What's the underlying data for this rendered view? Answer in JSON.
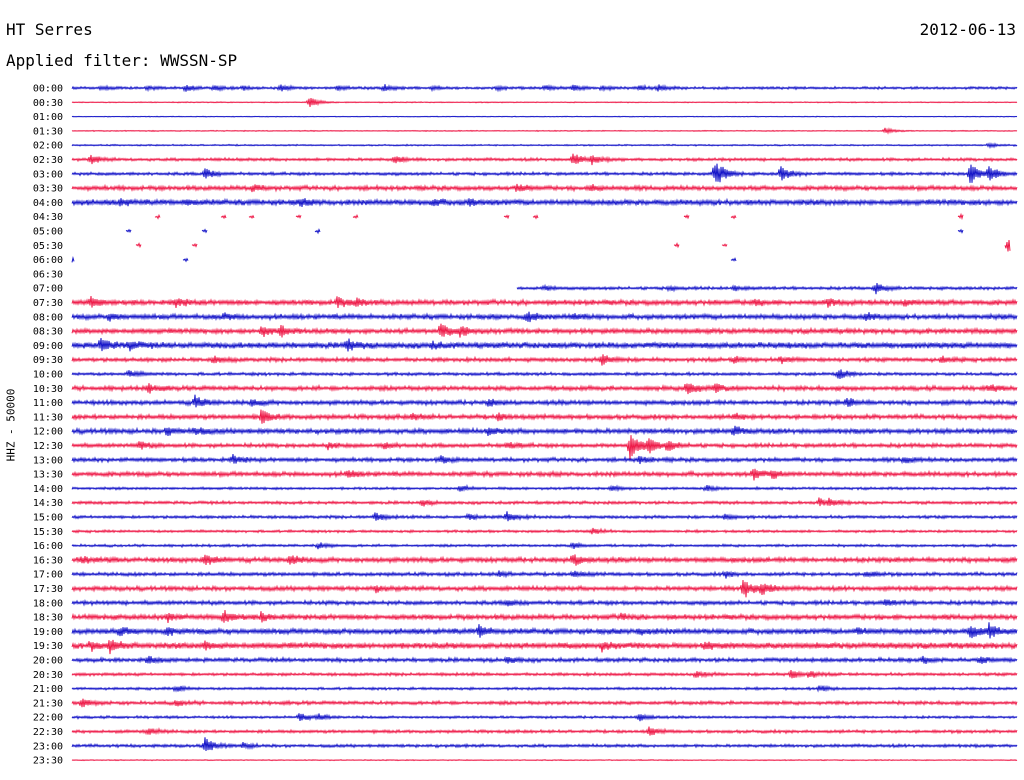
{
  "header": {
    "station": "HT Serres",
    "filter": "Applied filter: WWSSN-SP",
    "date": "2012-06-13"
  },
  "y_axis_label": "HHZ - 50000",
  "colors": {
    "trace_a": "#1414c8",
    "trace_b": "#ee1a48"
  },
  "chart_data": {
    "type": "line",
    "title": "HT Serres",
    "subtitle": "Applied filter: WWSSN-SP",
    "ylabel": "HHZ - 50000",
    "row_labels": [
      "00:00",
      "00:30",
      "01:00",
      "01:30",
      "02:00",
      "02:30",
      "03:00",
      "03:30",
      "04:00",
      "04:30",
      "05:00",
      "05:30",
      "06:00",
      "06:30",
      "07:00",
      "07:30",
      "08:00",
      "08:30",
      "09:00",
      "09:30",
      "10:00",
      "10:30",
      "11:00",
      "11:30",
      "12:00",
      "12:30",
      "13:00",
      "13:30",
      "14:00",
      "14:30",
      "15:00",
      "15:30",
      "16:00",
      "16:30",
      "17:00",
      "17:30",
      "18:00",
      "18:30",
      "19:00",
      "19:30",
      "20:00",
      "20:30",
      "21:00",
      "21:30",
      "22:00",
      "22:30",
      "23:00",
      "23:30"
    ],
    "row_minutes": 30,
    "rows": [
      {
        "noise": 1.0,
        "events": [
          [
            0.03,
            2
          ],
          [
            0.08,
            2
          ],
          [
            0.12,
            3
          ],
          [
            0.15,
            2.5
          ],
          [
            0.18,
            2
          ],
          [
            0.22,
            3
          ],
          [
            0.28,
            2
          ],
          [
            0.33,
            3
          ],
          [
            0.38,
            2
          ],
          [
            0.45,
            2
          ],
          [
            0.5,
            2.5
          ],
          [
            0.53,
            3
          ],
          [
            0.56,
            2
          ],
          [
            0.6,
            2.5
          ],
          [
            0.62,
            3
          ]
        ]
      },
      {
        "noise": 0.4,
        "events": [
          [
            0.25,
            6
          ]
        ]
      },
      {
        "noise": 0.3,
        "events": []
      },
      {
        "noise": 0.4,
        "events": [
          [
            0.86,
            3
          ]
        ]
      },
      {
        "noise": 0.6,
        "events": [
          [
            0.97,
            2
          ]
        ]
      },
      {
        "noise": 1.2,
        "events": [
          [
            0.02,
            4
          ],
          [
            0.34,
            4
          ],
          [
            0.53,
            6
          ],
          [
            0.55,
            4
          ]
        ]
      },
      {
        "noise": 1.2,
        "events": [
          [
            0.14,
            6
          ],
          [
            0.68,
            16
          ],
          [
            0.75,
            8
          ],
          [
            0.95,
            12
          ],
          [
            0.97,
            8
          ]
        ]
      },
      {
        "noise": 1.8,
        "events": [
          [
            0.19,
            3
          ],
          [
            0.47,
            4
          ],
          [
            0.55,
            3
          ]
        ]
      },
      {
        "noise": 2.2,
        "events": [
          [
            0.05,
            3
          ],
          [
            0.12,
            3
          ],
          [
            0.24,
            3
          ],
          [
            0.38,
            3
          ],
          [
            0.42,
            3
          ]
        ]
      },
      {
        "noise": 0,
        "gap": [
          0.0,
          1.0
        ],
        "events": [
          [
            0.09,
            2
          ],
          [
            0.16,
            2
          ],
          [
            0.19,
            2
          ],
          [
            0.24,
            2
          ],
          [
            0.3,
            2
          ],
          [
            0.46,
            2
          ],
          [
            0.49,
            2
          ],
          [
            0.65,
            2
          ],
          [
            0.7,
            2
          ],
          [
            0.94,
            3
          ]
        ]
      },
      {
        "noise": 0,
        "gap": [
          0.0,
          1.0
        ],
        "events": [
          [
            0.06,
            2
          ],
          [
            0.14,
            2
          ],
          [
            0.26,
            2
          ],
          [
            0.94,
            2
          ]
        ]
      },
      {
        "noise": 0,
        "gap": [
          0.0,
          1.0
        ],
        "events": [
          [
            0.07,
            2
          ],
          [
            0.13,
            2
          ],
          [
            0.64,
            2
          ],
          [
            0.69,
            2
          ],
          [
            0.99,
            10
          ]
        ]
      },
      {
        "noise": 0,
        "gap": [
          0.0,
          1.0
        ],
        "events": [
          [
            0.0,
            3
          ],
          [
            0.12,
            2
          ],
          [
            0.7,
            2
          ]
        ]
      },
      {
        "noise": 0,
        "gap": [
          0.0,
          1.0
        ],
        "events": []
      },
      {
        "noise": 1.2,
        "gap": [
          0.0,
          0.47
        ],
        "events": [
          [
            0.5,
            2
          ],
          [
            0.63,
            2
          ],
          [
            0.7,
            2
          ],
          [
            0.85,
            6
          ]
        ]
      },
      {
        "noise": 2.0,
        "events": [
          [
            0.02,
            5
          ],
          [
            0.11,
            4
          ],
          [
            0.28,
            5
          ],
          [
            0.3,
            4
          ],
          [
            0.72,
            3
          ],
          [
            0.8,
            3
          ],
          [
            0.88,
            3
          ]
        ]
      },
      {
        "noise": 2.0,
        "events": [
          [
            0.04,
            3
          ],
          [
            0.16,
            3
          ],
          [
            0.48,
            6
          ],
          [
            0.53,
            3
          ],
          [
            0.84,
            3
          ]
        ]
      },
      {
        "noise": 2.0,
        "events": [
          [
            0.2,
            6
          ],
          [
            0.22,
            5
          ],
          [
            0.39,
            7
          ],
          [
            0.41,
            5
          ]
        ]
      },
      {
        "noise": 2.4,
        "events": [
          [
            0.03,
            6
          ],
          [
            0.06,
            4
          ],
          [
            0.29,
            6
          ],
          [
            0.38,
            3
          ]
        ]
      },
      {
        "noise": 1.6,
        "events": [
          [
            0.15,
            3
          ],
          [
            0.56,
            6
          ],
          [
            0.7,
            3
          ],
          [
            0.75,
            3
          ],
          [
            0.92,
            3
          ]
        ]
      },
      {
        "noise": 1.2,
        "events": [
          [
            0.06,
            3
          ],
          [
            0.81,
            6
          ]
        ]
      },
      {
        "noise": 1.8,
        "events": [
          [
            0.08,
            4
          ],
          [
            0.65,
            8
          ],
          [
            0.68,
            4
          ],
          [
            0.97,
            3
          ]
        ]
      },
      {
        "noise": 1.8,
        "events": [
          [
            0.13,
            6
          ],
          [
            0.19,
            3
          ],
          [
            0.44,
            3
          ],
          [
            0.82,
            4
          ]
        ]
      },
      {
        "noise": 1.8,
        "events": [
          [
            0.2,
            7
          ],
          [
            0.36,
            3
          ],
          [
            0.45,
            3
          ],
          [
            0.7,
            3
          ]
        ]
      },
      {
        "noise": 2.0,
        "events": [
          [
            0.1,
            4
          ],
          [
            0.13,
            4
          ],
          [
            0.44,
            3
          ],
          [
            0.7,
            4
          ]
        ]
      },
      {
        "noise": 1.6,
        "events": [
          [
            0.07,
            4
          ],
          [
            0.27,
            3
          ],
          [
            0.33,
            3
          ],
          [
            0.46,
            3
          ],
          [
            0.59,
            14
          ],
          [
            0.61,
            8
          ],
          [
            0.63,
            5
          ]
        ]
      },
      {
        "noise": 1.6,
        "events": [
          [
            0.17,
            4
          ],
          [
            0.39,
            3
          ],
          [
            0.6,
            3
          ],
          [
            0.88,
            3
          ]
        ]
      },
      {
        "noise": 1.8,
        "events": [
          [
            0.29,
            4
          ],
          [
            0.72,
            6
          ],
          [
            0.74,
            4
          ]
        ]
      },
      {
        "noise": 1.0,
        "events": [
          [
            0.41,
            3
          ],
          [
            0.57,
            3
          ],
          [
            0.67,
            3
          ]
        ]
      },
      {
        "noise": 1.2,
        "events": [
          [
            0.37,
            3
          ],
          [
            0.79,
            4
          ],
          [
            0.8,
            3
          ]
        ]
      },
      {
        "noise": 1.2,
        "events": [
          [
            0.32,
            4
          ],
          [
            0.42,
            3
          ],
          [
            0.46,
            5
          ],
          [
            0.69,
            3
          ]
        ]
      },
      {
        "noise": 1.0,
        "events": [
          [
            0.55,
            3
          ]
        ]
      },
      {
        "noise": 1.0,
        "events": [
          [
            0.26,
            3
          ],
          [
            0.53,
            3
          ]
        ]
      },
      {
        "noise": 2.0,
        "events": [
          [
            0.01,
            3
          ],
          [
            0.14,
            6
          ],
          [
            0.23,
            5
          ],
          [
            0.53,
            6
          ]
        ]
      },
      {
        "noise": 1.4,
        "events": [
          [
            0.45,
            3
          ],
          [
            0.53,
            3
          ],
          [
            0.69,
            3
          ],
          [
            0.84,
            3
          ]
        ]
      },
      {
        "noise": 1.8,
        "events": [
          [
            0.32,
            3
          ],
          [
            0.71,
            10
          ],
          [
            0.73,
            6
          ]
        ]
      },
      {
        "noise": 1.6,
        "events": [
          [
            0.46,
            3
          ],
          [
            0.86,
            3
          ]
        ]
      },
      {
        "noise": 2.0,
        "events": [
          [
            0.1,
            4
          ],
          [
            0.16,
            7
          ],
          [
            0.2,
            4
          ],
          [
            0.58,
            3
          ]
        ]
      },
      {
        "noise": 2.2,
        "events": [
          [
            0.05,
            4
          ],
          [
            0.1,
            3
          ],
          [
            0.43,
            6
          ],
          [
            0.6,
            3
          ],
          [
            0.83,
            3
          ],
          [
            0.95,
            7
          ],
          [
            0.97,
            6
          ]
        ]
      },
      {
        "noise": 2.4,
        "events": [
          [
            0.02,
            4
          ],
          [
            0.04,
            6
          ],
          [
            0.14,
            3
          ],
          [
            0.56,
            4
          ],
          [
            0.67,
            3
          ]
        ]
      },
      {
        "noise": 1.6,
        "events": [
          [
            0.08,
            3
          ],
          [
            0.46,
            3
          ],
          [
            0.9,
            3
          ],
          [
            0.96,
            3
          ]
        ]
      },
      {
        "noise": 1.2,
        "events": [
          [
            0.66,
            3
          ],
          [
            0.76,
            5
          ],
          [
            0.78,
            3
          ]
        ]
      },
      {
        "noise": 1.0,
        "events": [
          [
            0.11,
            3
          ],
          [
            0.79,
            3
          ]
        ]
      },
      {
        "noise": 1.4,
        "events": [
          [
            0.01,
            4
          ],
          [
            0.11,
            3
          ]
        ]
      },
      {
        "noise": 1.0,
        "events": [
          [
            0.24,
            4
          ],
          [
            0.26,
            3
          ],
          [
            0.6,
            4
          ]
        ]
      },
      {
        "noise": 1.2,
        "events": [
          [
            0.08,
            4
          ],
          [
            0.61,
            4
          ]
        ]
      },
      {
        "noise": 1.2,
        "events": [
          [
            0.14,
            9
          ],
          [
            0.18,
            3
          ]
        ]
      },
      {
        "noise": 0.4,
        "events": []
      }
    ]
  }
}
